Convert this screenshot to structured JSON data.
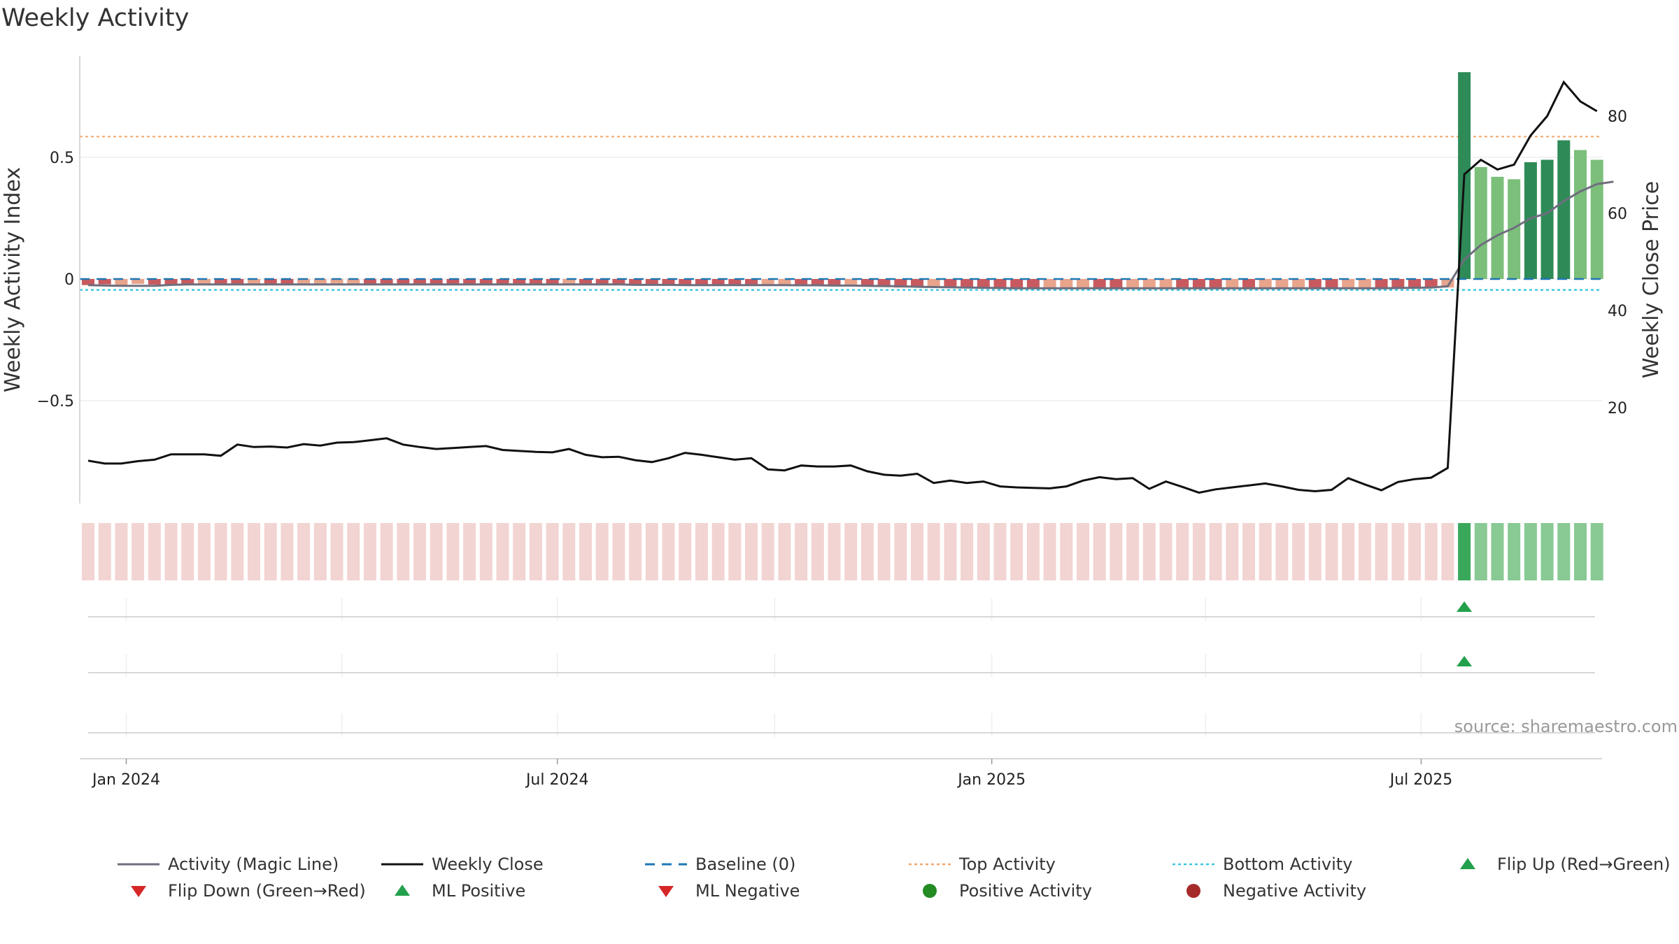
{
  "chart_data": {
    "type": "bar",
    "title": "Weekly Activity",
    "ylabel": "Weekly Activity Index",
    "y2label": "Weekly Close Price",
    "ylim": [
      -0.92,
      0.9
    ],
    "y2lim": [
      0,
      92
    ],
    "yticks": [
      {
        "v": 0.5,
        "label": "0.5"
      },
      {
        "v": 0,
        "label": "0"
      },
      {
        "v": -0.5,
        "label": "−0.5"
      }
    ],
    "y2ticks": [
      {
        "v": 80,
        "label": "80"
      },
      {
        "v": 60,
        "label": "60"
      },
      {
        "v": 40,
        "label": "40"
      },
      {
        "v": 20,
        "label": "20"
      }
    ],
    "xticks": [
      {
        "label": "Jan 2024",
        "week": 2.3
      },
      {
        "label": "Jul 2024",
        "week": 28.3
      },
      {
        "label": "Jan 2025",
        "week": 54.5
      },
      {
        "label": "Jul 2025",
        "week": 80.4
      }
    ],
    "top_activity": 0.585,
    "bottom_activity": -0.045,
    "weeks": 92,
    "activity": [
      -0.025,
      -0.022,
      -0.025,
      -0.02,
      -0.023,
      -0.025,
      -0.02,
      -0.024,
      -0.023,
      -0.02,
      -0.025,
      -0.022,
      -0.024,
      -0.02,
      -0.022,
      -0.024,
      -0.02,
      -0.022,
      -0.025,
      -0.02,
      -0.023,
      -0.025,
      -0.02,
      -0.022,
      -0.024,
      -0.02,
      -0.022,
      -0.025,
      -0.02,
      -0.024,
      -0.022,
      -0.02,
      -0.025,
      -0.023,
      -0.022,
      -0.028,
      -0.025,
      -0.022,
      -0.026,
      -0.024,
      -0.022,
      -0.028,
      -0.025,
      -0.03,
      -0.025,
      -0.028,
      -0.03,
      -0.032,
      -0.03,
      -0.035,
      -0.033,
      -0.035,
      -0.035,
      -0.038,
      -0.04,
      -0.04,
      -0.042,
      -0.04,
      -0.04,
      -0.04,
      -0.042,
      -0.04,
      -0.038,
      -0.04,
      -0.04,
      -0.04,
      -0.042,
      -0.04,
      -0.04,
      -0.04,
      -0.042,
      -0.04,
      -0.04,
      -0.042,
      -0.04,
      -0.04,
      -0.04,
      -0.04,
      -0.035,
      -0.04,
      -0.04,
      -0.035,
      -0.035,
      0.85,
      0.46,
      0.42,
      0.41,
      0.48,
      0.49,
      0.57,
      0.53,
      0.49
    ],
    "activity_strong": [
      true,
      true,
      false,
      false,
      true,
      true,
      true,
      false,
      true,
      true,
      false,
      true,
      true,
      false,
      false,
      false,
      false,
      true,
      true,
      true,
      true,
      true,
      true,
      true,
      true,
      true,
      true,
      true,
      true,
      false,
      true,
      true,
      true,
      true,
      true,
      true,
      true,
      true,
      true,
      true,
      true,
      false,
      false,
      true,
      true,
      true,
      false,
      true,
      true,
      true,
      true,
      false,
      true,
      true,
      true,
      true,
      true,
      true,
      false,
      false,
      false,
      true,
      true,
      false,
      false,
      false,
      true,
      true,
      true,
      false,
      true,
      false,
      false,
      false,
      true,
      true,
      false,
      false,
      true,
      true,
      true,
      true,
      false,
      true,
      false,
      false,
      false,
      true,
      true,
      true,
      false,
      false
    ],
    "magic_line": [
      -0.025,
      -0.027,
      -0.028,
      -0.028,
      -0.028,
      -0.024,
      -0.022,
      -0.022,
      -0.022,
      -0.022,
      -0.022,
      -0.022,
      -0.022,
      -0.022,
      -0.022,
      -0.022,
      -0.022,
      -0.022,
      -0.022,
      -0.022,
      -0.022,
      -0.022,
      -0.022,
      -0.022,
      -0.022,
      -0.022,
      -0.022,
      -0.022,
      -0.022,
      -0.022,
      -0.022,
      -0.022,
      -0.022,
      -0.024,
      -0.024,
      -0.024,
      -0.025,
      -0.025,
      -0.025,
      -0.025,
      -0.025,
      -0.025,
      -0.025,
      -0.026,
      -0.026,
      -0.027,
      -0.027,
      -0.028,
      -0.029,
      -0.03,
      -0.032,
      -0.033,
      -0.034,
      -0.035,
      -0.036,
      -0.037,
      -0.038,
      -0.038,
      -0.038,
      -0.038,
      -0.038,
      -0.038,
      -0.038,
      -0.038,
      -0.038,
      -0.038,
      -0.038,
      -0.038,
      -0.038,
      -0.038,
      -0.038,
      -0.038,
      -0.038,
      -0.038,
      -0.038,
      -0.038,
      -0.038,
      -0.038,
      -0.038,
      -0.037,
      -0.036,
      -0.035,
      -0.03,
      0.08,
      0.14,
      0.18,
      0.21,
      0.25,
      0.27,
      0.32,
      0.36,
      0.39,
      0.4
    ],
    "weekly_close": [
      9.1,
      8.5,
      8.5,
      9.0,
      9.3,
      10.4,
      10.4,
      10.4,
      10.1,
      12.4,
      11.9,
      12.0,
      11.8,
      12.5,
      12.2,
      12.8,
      12.9,
      13.3,
      13.7,
      12.4,
      11.9,
      11.5,
      11.7,
      11.9,
      12.1,
      11.3,
      11.1,
      10.9,
      10.8,
      11.5,
      10.3,
      9.8,
      9.9,
      9.2,
      8.8,
      9.6,
      10.7,
      10.3,
      9.8,
      9.3,
      9.6,
      7.3,
      7.1,
      8.1,
      7.9,
      7.9,
      8.1,
      6.9,
      6.2,
      6.0,
      6.4,
      4.5,
      5.0,
      4.5,
      4.8,
      3.8,
      3.6,
      3.5,
      3.4,
      3.8,
      5.0,
      5.7,
      5.3,
      5.5,
      3.3,
      4.8,
      3.7,
      2.5,
      3.2,
      3.6,
      4.0,
      4.4,
      3.8,
      3.1,
      2.8,
      3.1,
      5.5,
      4.2,
      3.0,
      4.7,
      5.3,
      5.6,
      7.6,
      68,
      71,
      69,
      70,
      76,
      80,
      87,
      83,
      81
    ],
    "regime": [
      "red",
      "red",
      "red",
      "red",
      "red",
      "red",
      "red",
      "red",
      "red",
      "red",
      "red",
      "red",
      "red",
      "red",
      "red",
      "red",
      "red",
      "red",
      "red",
      "red",
      "red",
      "red",
      "red",
      "red",
      "red",
      "red",
      "red",
      "red",
      "red",
      "red",
      "red",
      "red",
      "red",
      "red",
      "red",
      "red",
      "red",
      "red",
      "red",
      "red",
      "red",
      "red",
      "red",
      "red",
      "red",
      "red",
      "red",
      "red",
      "red",
      "red",
      "red",
      "red",
      "red",
      "red",
      "red",
      "red",
      "red",
      "red",
      "red",
      "red",
      "red",
      "red",
      "red",
      "red",
      "red",
      "red",
      "red",
      "red",
      "red",
      "red",
      "red",
      "red",
      "red",
      "red",
      "red",
      "red",
      "red",
      "red",
      "red",
      "red",
      "red",
      "red",
      "red",
      "flip",
      "green",
      "green",
      "green",
      "green",
      "green",
      "green",
      "green",
      "green"
    ],
    "flip_up_week": 83,
    "ml_positive_week": 83,
    "legend": [
      "Activity (Magic Line)",
      "Weekly Close",
      "Baseline (0)",
      "Top Activity",
      "Bottom Activity",
      "Flip Up (Red→Green)",
      "Flip Down (Green→Red)",
      "ML Positive",
      "ML Negative",
      "Positive Activity",
      "Negative Activity"
    ],
    "legend_placement": "bottom",
    "colors": {
      "red_strong": "#c85a5f",
      "red_light": "#e9a48c",
      "green_strong": "#2e8b57",
      "green_light": "#7bbf7b",
      "regime_red": "#f2d4d2",
      "regime_green_strong": "#3aa85a",
      "regime_green": "#88c994",
      "magic_line": "#6e6e7e",
      "close_line": "#111111",
      "baseline": "#1f77b4",
      "top": "#f2a66b",
      "bottom": "#3cc8e0",
      "triangle_green": "#22a04b",
      "triangle_red": "#d62728",
      "positive_dot": "#228b22",
      "negative_dot": "#a52a2a"
    }
  },
  "source": "source: sharemaestro.com"
}
